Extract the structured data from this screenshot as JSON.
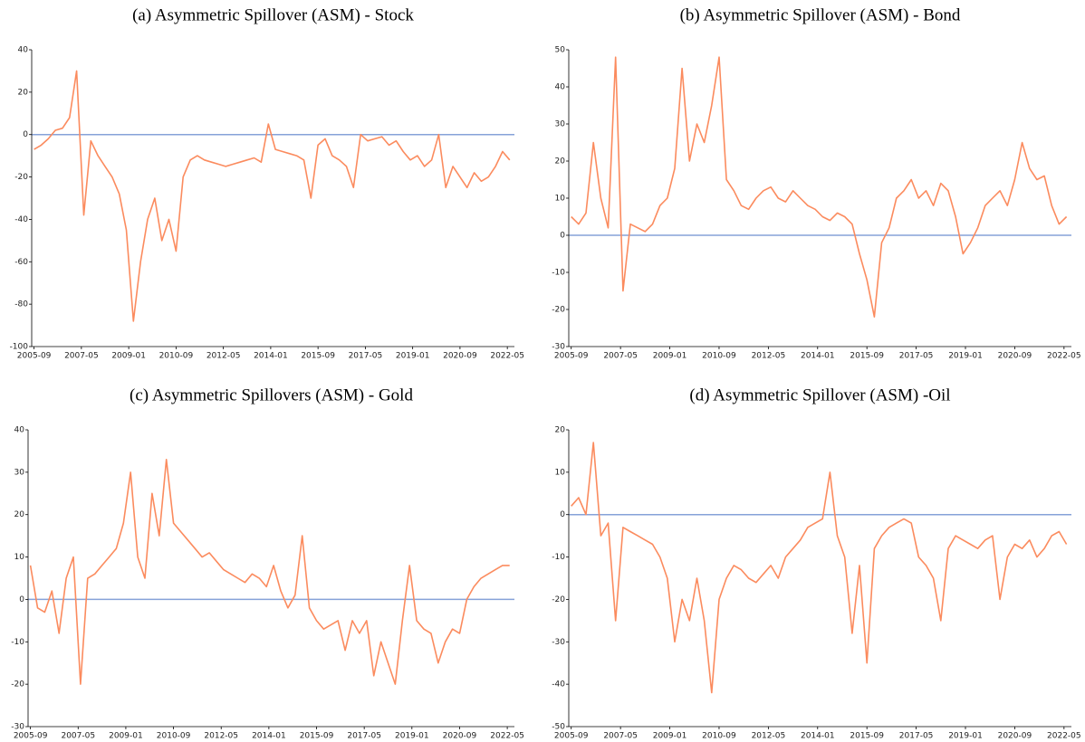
{
  "chart_data": [
    {
      "type": "line",
      "title": "(a)  Asymmetric Spillover (ASM) - Stock",
      "color": "#fb8b5e",
      "hline": 0,
      "hline_color": "#86a2d8",
      "x": [
        "2005-09",
        "2005-12",
        "2006-03",
        "2006-06",
        "2006-09",
        "2006-12",
        "2007-03",
        "2007-06",
        "2007-09",
        "2007-12",
        "2008-03",
        "2008-06",
        "2008-09",
        "2008-12",
        "2009-03",
        "2009-06",
        "2009-09",
        "2009-12",
        "2010-03",
        "2010-06",
        "2010-09",
        "2010-12",
        "2011-03",
        "2011-06",
        "2011-09",
        "2011-12",
        "2012-03",
        "2012-06",
        "2012-09",
        "2012-12",
        "2013-03",
        "2013-06",
        "2013-09",
        "2013-12",
        "2014-03",
        "2014-06",
        "2014-09",
        "2014-12",
        "2015-03",
        "2015-06",
        "2015-09",
        "2015-12",
        "2016-03",
        "2016-06",
        "2016-09",
        "2016-12",
        "2017-03",
        "2017-06",
        "2017-09",
        "2017-12",
        "2018-03",
        "2018-06",
        "2018-09",
        "2018-12",
        "2019-03",
        "2019-06",
        "2019-09",
        "2019-12",
        "2020-03",
        "2020-06",
        "2020-09",
        "2020-12",
        "2021-03",
        "2021-06",
        "2021-09",
        "2021-12",
        "2022-03",
        "2022-06"
      ],
      "values": [
        -7,
        -5,
        -2,
        2,
        3,
        8,
        30,
        -38,
        -3,
        -10,
        -15,
        -20,
        -28,
        -45,
        -88,
        -60,
        -40,
        -30,
        -50,
        -40,
        -55,
        -20,
        -12,
        -10,
        -12,
        -13,
        -14,
        -15,
        -14,
        -13,
        -12,
        -11,
        -13,
        5,
        -7,
        -8,
        -9,
        -10,
        -12,
        -30,
        -5,
        -2,
        -10,
        -12,
        -15,
        -25,
        0,
        -3,
        -2,
        -1,
        -5,
        -3,
        -8,
        -12,
        -10,
        -15,
        -12,
        0,
        -25,
        -15,
        -20,
        -25,
        -18,
        -22,
        -20,
        -15,
        -8,
        -12
      ],
      "xlim": [
        "2005-08",
        "2022-08"
      ],
      "xticks": [
        "2005-09",
        "2007-05",
        "2009-01",
        "2010-09",
        "2012-05",
        "2014-01",
        "2015-09",
        "2017-05",
        "2019-01",
        "2020-09",
        "2022-05"
      ],
      "ylim": [
        -100,
        40
      ],
      "yticks": [
        -100,
        -80,
        -60,
        -40,
        -20,
        0,
        20,
        40
      ]
    },
    {
      "type": "line",
      "title": "(b)  Asymmetric Spillover (ASM) - Bond",
      "color": "#fb8b5e",
      "hline": 0,
      "hline_color": "#86a2d8",
      "x": [
        "2005-09",
        "2005-12",
        "2006-03",
        "2006-06",
        "2006-09",
        "2006-12",
        "2007-03",
        "2007-06",
        "2007-09",
        "2007-12",
        "2008-03",
        "2008-06",
        "2008-09",
        "2008-12",
        "2009-03",
        "2009-06",
        "2009-09",
        "2009-12",
        "2010-03",
        "2010-06",
        "2010-09",
        "2010-12",
        "2011-03",
        "2011-06",
        "2011-09",
        "2011-12",
        "2012-03",
        "2012-06",
        "2012-09",
        "2012-12",
        "2013-03",
        "2013-06",
        "2013-09",
        "2013-12",
        "2014-03",
        "2014-06",
        "2014-09",
        "2014-12",
        "2015-03",
        "2015-06",
        "2015-09",
        "2015-12",
        "2016-03",
        "2016-06",
        "2016-09",
        "2016-12",
        "2017-03",
        "2017-06",
        "2017-09",
        "2017-12",
        "2018-03",
        "2018-06",
        "2018-09",
        "2018-12",
        "2019-03",
        "2019-06",
        "2019-09",
        "2019-12",
        "2020-03",
        "2020-06",
        "2020-09",
        "2020-12",
        "2021-03",
        "2021-06",
        "2021-09",
        "2021-12",
        "2022-03",
        "2022-06"
      ],
      "values": [
        5,
        3,
        6,
        25,
        10,
        2,
        48,
        -15,
        3,
        2,
        1,
        3,
        8,
        10,
        18,
        45,
        20,
        30,
        25,
        35,
        48,
        15,
        12,
        8,
        7,
        10,
        12,
        13,
        10,
        9,
        12,
        10,
        8,
        7,
        5,
        4,
        6,
        5,
        3,
        -5,
        -12,
        -22,
        -2,
        2,
        10,
        12,
        15,
        10,
        12,
        8,
        14,
        12,
        5,
        -5,
        -2,
        2,
        8,
        10,
        12,
        8,
        15,
        25,
        18,
        15,
        16,
        8,
        3,
        5
      ],
      "xlim": [
        "2005-08",
        "2022-08"
      ],
      "xticks": [
        "2005-09",
        "2007-05",
        "2009-01",
        "2010-09",
        "2012-05",
        "2014-01",
        "2015-09",
        "2017-05",
        "2019-01",
        "2020-09",
        "2022-05"
      ],
      "ylim": [
        -30,
        50
      ],
      "yticks": [
        -30,
        -20,
        -10,
        0,
        10,
        20,
        30,
        40,
        50
      ]
    },
    {
      "type": "line",
      "title": "(c)  Asymmetric Spillovers (ASM) - Gold",
      "color": "#fb8b5e",
      "hline": 0,
      "hline_color": "#86a2d8",
      "x": [
        "2005-09",
        "2005-12",
        "2006-03",
        "2006-06",
        "2006-09",
        "2006-12",
        "2007-03",
        "2007-06",
        "2007-09",
        "2007-12",
        "2008-03",
        "2008-06",
        "2008-09",
        "2008-12",
        "2009-03",
        "2009-06",
        "2009-09",
        "2009-12",
        "2010-03",
        "2010-06",
        "2010-09",
        "2010-12",
        "2011-03",
        "2011-06",
        "2011-09",
        "2011-12",
        "2012-03",
        "2012-06",
        "2012-09",
        "2012-12",
        "2013-03",
        "2013-06",
        "2013-09",
        "2013-12",
        "2014-03",
        "2014-06",
        "2014-09",
        "2014-12",
        "2015-03",
        "2015-06",
        "2015-09",
        "2015-12",
        "2016-03",
        "2016-06",
        "2016-09",
        "2016-12",
        "2017-03",
        "2017-06",
        "2017-09",
        "2017-12",
        "2018-03",
        "2018-06",
        "2018-09",
        "2018-12",
        "2019-03",
        "2019-06",
        "2019-09",
        "2019-12",
        "2020-03",
        "2020-06",
        "2020-09",
        "2020-12",
        "2021-03",
        "2021-06",
        "2021-09",
        "2021-12",
        "2022-03",
        "2022-06"
      ],
      "values": [
        8,
        -2,
        -3,
        2,
        -8,
        5,
        10,
        -20,
        5,
        6,
        8,
        10,
        12,
        18,
        30,
        10,
        5,
        25,
        15,
        33,
        18,
        16,
        14,
        12,
        10,
        11,
        9,
        7,
        6,
        5,
        4,
        6,
        5,
        3,
        8,
        2,
        -2,
        1,
        15,
        -2,
        -5,
        -7,
        -6,
        -5,
        -12,
        -5,
        -8,
        -5,
        -18,
        -10,
        -15,
        -20,
        -5,
        8,
        -5,
        -7,
        -8,
        -15,
        -10,
        -7,
        -8,
        0,
        3,
        5,
        6,
        7,
        8,
        8
      ],
      "xlim": [
        "2005-08",
        "2022-08"
      ],
      "xticks": [
        "2005-09",
        "2007-05",
        "2009-01",
        "2010-09",
        "2012-05",
        "2014-01",
        "2015-09",
        "2017-05",
        "2019-01",
        "2020-09",
        "2022-05"
      ],
      "ylim": [
        -30,
        40
      ],
      "yticks": [
        -30,
        -20,
        -10,
        0,
        10,
        20,
        30,
        40
      ]
    },
    {
      "type": "line",
      "title": "(d)  Asymmetric Spillover (ASM) -Oil",
      "color": "#fb8b5e",
      "hline": 0,
      "hline_color": "#86a2d8",
      "x": [
        "2005-09",
        "2005-12",
        "2006-03",
        "2006-06",
        "2006-09",
        "2006-12",
        "2007-03",
        "2007-06",
        "2007-09",
        "2007-12",
        "2008-03",
        "2008-06",
        "2008-09",
        "2008-12",
        "2009-03",
        "2009-06",
        "2009-09",
        "2009-12",
        "2010-03",
        "2010-06",
        "2010-09",
        "2010-12",
        "2011-03",
        "2011-06",
        "2011-09",
        "2011-12",
        "2012-03",
        "2012-06",
        "2012-09",
        "2012-12",
        "2013-03",
        "2013-06",
        "2013-09",
        "2013-12",
        "2014-03",
        "2014-06",
        "2014-09",
        "2014-12",
        "2015-03",
        "2015-06",
        "2015-09",
        "2015-12",
        "2016-03",
        "2016-06",
        "2016-09",
        "2016-12",
        "2017-03",
        "2017-06",
        "2017-09",
        "2017-12",
        "2018-03",
        "2018-06",
        "2018-09",
        "2018-12",
        "2019-03",
        "2019-06",
        "2019-09",
        "2019-12",
        "2020-03",
        "2020-06",
        "2020-09",
        "2020-12",
        "2021-03",
        "2021-06",
        "2021-09",
        "2021-12",
        "2022-03",
        "2022-06"
      ],
      "values": [
        2,
        4,
        0,
        17,
        -5,
        -2,
        -25,
        -3,
        -4,
        -5,
        -6,
        -7,
        -10,
        -15,
        -30,
        -20,
        -25,
        -15,
        -25,
        -42,
        -20,
        -15,
        -12,
        -13,
        -15,
        -16,
        -14,
        -12,
        -15,
        -10,
        -8,
        -6,
        -3,
        -2,
        -1,
        10,
        -5,
        -10,
        -28,
        -12,
        -35,
        -8,
        -5,
        -3,
        -2,
        -1,
        -2,
        -10,
        -12,
        -15,
        -25,
        -8,
        -5,
        -6,
        -7,
        -8,
        -6,
        -5,
        -20,
        -10,
        -7,
        -8,
        -6,
        -10,
        -8,
        -5,
        -4,
        -7
      ],
      "xlim": [
        "2005-08",
        "2022-08"
      ],
      "xticks": [
        "2005-09",
        "2007-05",
        "2009-01",
        "2010-09",
        "2012-05",
        "2014-01",
        "2015-09",
        "2017-05",
        "2019-01",
        "2020-09",
        "2022-05"
      ],
      "ylim": [
        -50,
        20
      ],
      "yticks": [
        -50,
        -40,
        -30,
        -20,
        -10,
        0,
        10,
        20
      ]
    }
  ]
}
